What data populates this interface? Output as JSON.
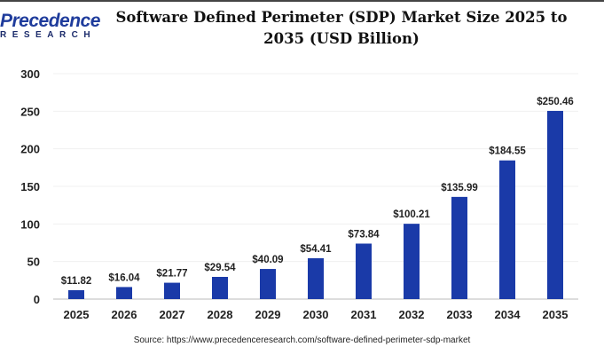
{
  "logo": {
    "line1": "Precedence",
    "line2": "RESEARCH"
  },
  "title": "Software Defined Perimeter (SDP) Market Size 2025 to 2035 (USD Billion)",
  "source": "Source: https://www.precedenceresearch.com/software-defined-perimeter-sdp-market",
  "chart_data": {
    "type": "bar",
    "title": "Software Defined Perimeter (SDP) Market Size 2025 to 2035 (USD Billion)",
    "categories": [
      "2025",
      "2026",
      "2027",
      "2028",
      "2029",
      "2030",
      "2031",
      "2032",
      "2033",
      "2034",
      "2035"
    ],
    "values": [
      11.82,
      16.04,
      21.77,
      29.54,
      40.09,
      54.41,
      73.84,
      100.21,
      135.99,
      184.55,
      250.46
    ],
    "data_labels": [
      "$11.82",
      "$16.04",
      "$21.77",
      "$29.54",
      "$40.09",
      "$54.41",
      "$73.84",
      "$100.21",
      "$135.99",
      "$184.55",
      "$250.46"
    ],
    "ylim": [
      0,
      300
    ],
    "yticks": [
      0,
      50,
      100,
      150,
      200,
      250,
      300
    ],
    "grid": true,
    "bar_color": "#1a3aa8"
  }
}
